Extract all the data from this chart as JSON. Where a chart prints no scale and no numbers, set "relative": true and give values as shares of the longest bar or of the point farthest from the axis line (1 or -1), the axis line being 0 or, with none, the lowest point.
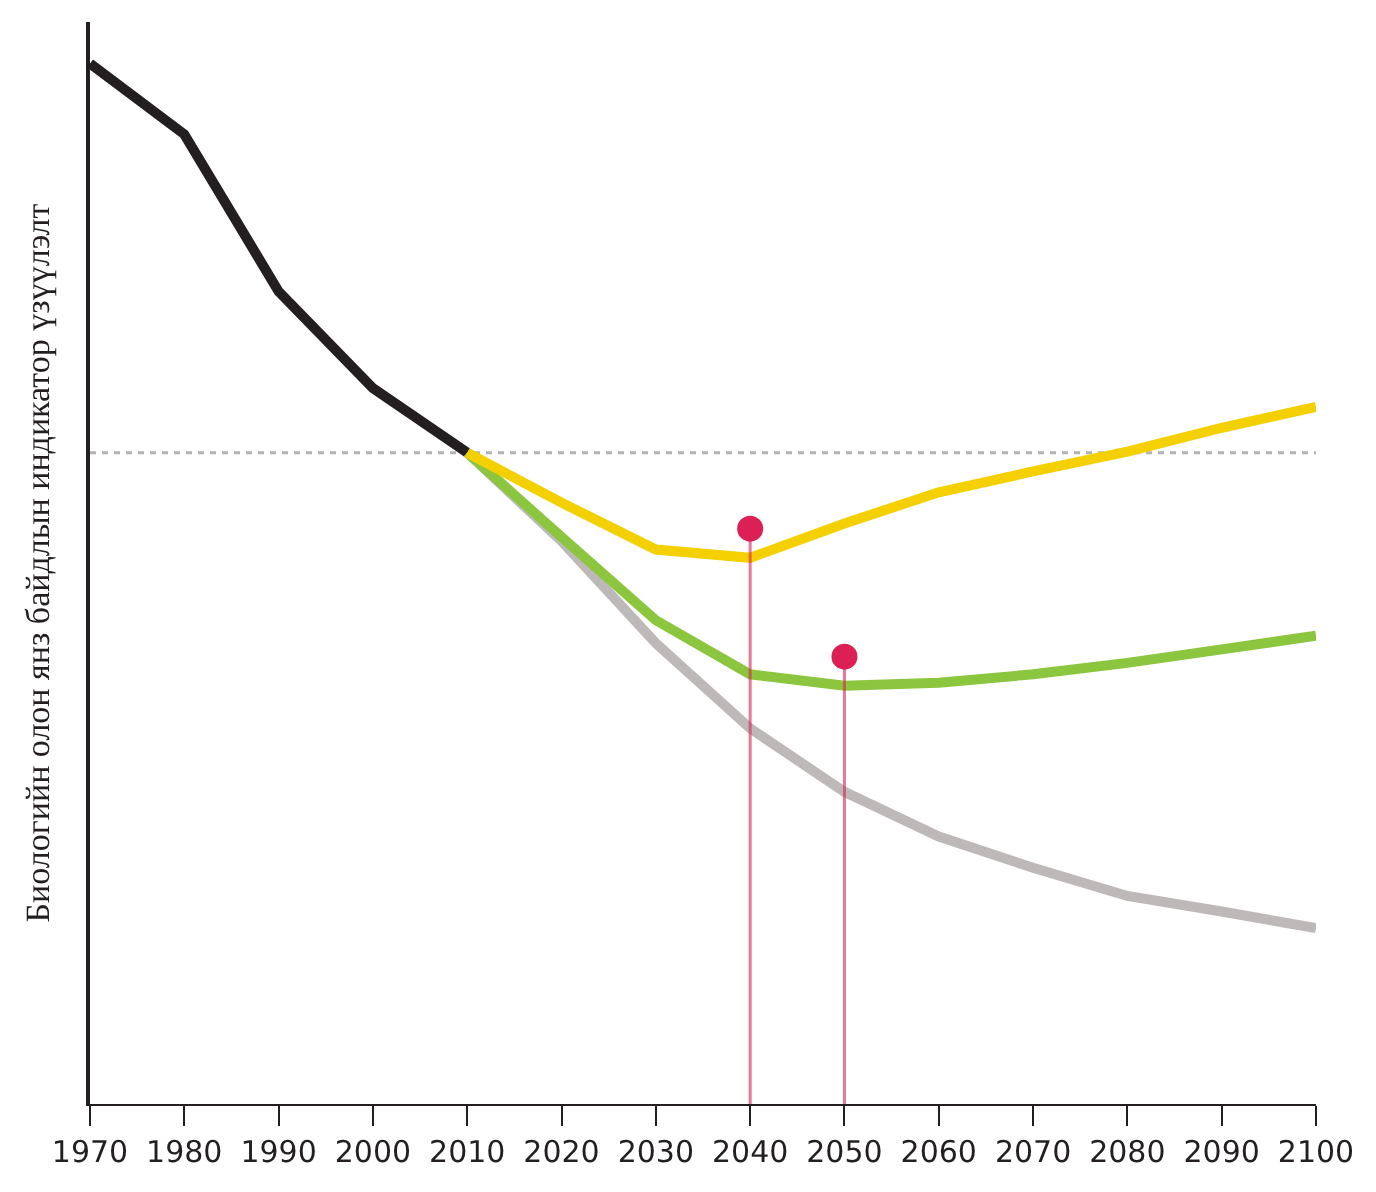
{
  "chart_data": {
    "type": "line",
    "relative": true,
    "ylabel": "Биологийн олон янз байдлын индикатор үзүүлэлт",
    "xlim": [
      1970,
      2100
    ],
    "xticks": [
      1970,
      1980,
      1990,
      2000,
      2010,
      2020,
      2030,
      2040,
      2050,
      2060,
      2070,
      2080,
      2090,
      2100
    ],
    "series": [
      {
        "color": "#231f20",
        "x": [
          1970,
          1980,
          1990,
          2000,
          2010
        ],
        "values": [
          1.0,
          0.932,
          0.781,
          0.688,
          0.626
        ]
      },
      {
        "color": "#bdb9b8",
        "x": [
          2010,
          2020,
          2030,
          2040,
          2050,
          2060,
          2070,
          2080,
          2090,
          2100
        ],
        "values": [
          0.626,
          0.541,
          0.443,
          0.361,
          0.3,
          0.257,
          0.227,
          0.2,
          0.185,
          0.169
        ]
      },
      {
        "color": "#8cc63f",
        "x": [
          2010,
          2020,
          2030,
          2040,
          2050,
          2060,
          2070,
          2080,
          2090,
          2100
        ],
        "values": [
          0.626,
          0.545,
          0.465,
          0.413,
          0.402,
          0.405,
          0.413,
          0.424,
          0.437,
          0.45
        ]
      },
      {
        "color": "#f5d000",
        "x": [
          2010,
          2020,
          2030,
          2040,
          2050,
          2060,
          2070,
          2080,
          2090,
          2100
        ],
        "values": [
          0.626,
          0.578,
          0.533,
          0.525,
          0.558,
          0.588,
          0.608,
          0.627,
          0.65,
          0.67
        ]
      },
      {
        "type": "lollipop",
        "color": "#dc1f55",
        "x": [
          2040,
          2050
        ],
        "values": [
          0.553,
          0.43
        ]
      }
    ],
    "ref_lines": [
      {
        "axis": "y",
        "value": 0.626,
        "color": "#b3b3b3",
        "line_style": "dotted"
      }
    ]
  }
}
